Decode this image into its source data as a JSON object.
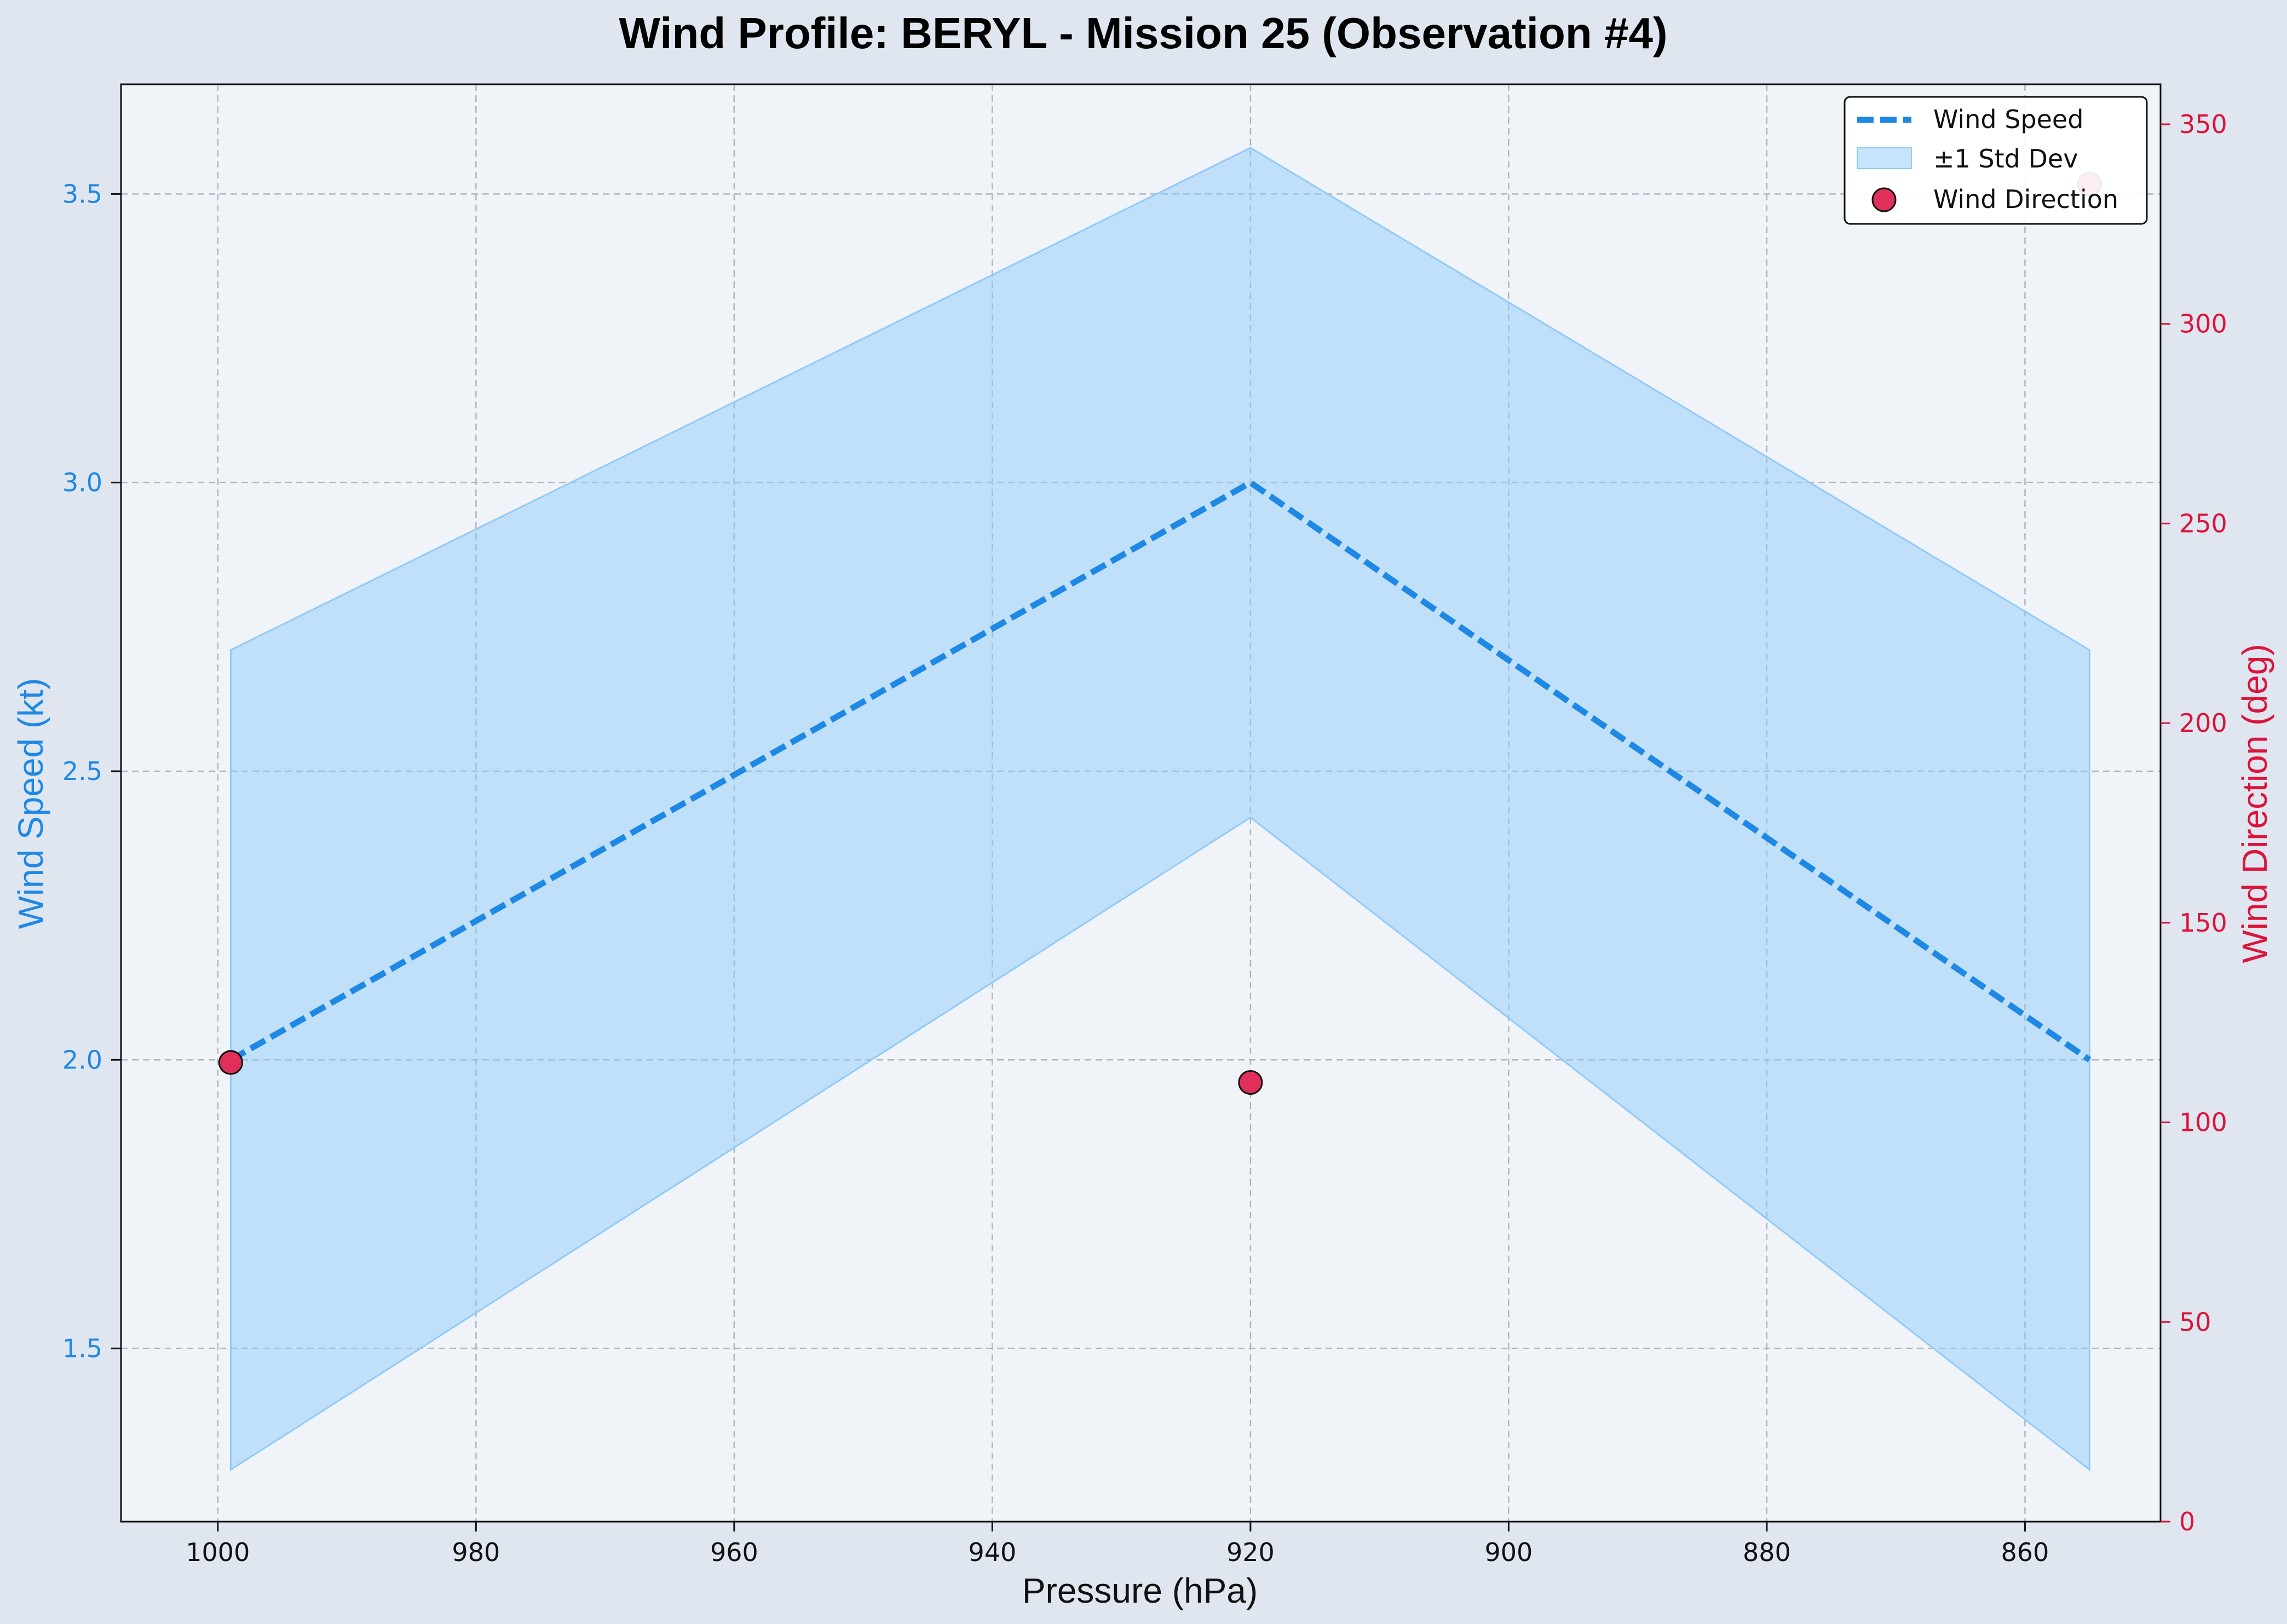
{
  "chart_data": {
    "type": "line",
    "title": "Wind Profile: BERYL - Mission 25 (Observation #4)",
    "xlabel": "Pressure (hPa)",
    "ylabel": "Wind Speed (kt)",
    "y2label": "Wind Direction (deg)",
    "x_inverted": true,
    "xlim": [
      1007.5,
      849.5
    ],
    "ylim": [
      1.2,
      3.69
    ],
    "y2lim": [
      0,
      360
    ],
    "x_ticks": [
      1000,
      980,
      960,
      940,
      920,
      900,
      880,
      860
    ],
    "y_ticks": [
      1.5,
      2.0,
      2.5,
      3.0,
      3.5
    ],
    "y2_ticks": [
      0,
      50,
      100,
      150,
      200,
      250,
      300,
      350
    ],
    "x_tick_labels": [
      "1000",
      "980",
      "960",
      "940",
      "920",
      "900",
      "880",
      "860"
    ],
    "y_tick_labels": [
      "1.5",
      "2.0",
      "2.5",
      "3.0",
      "3.5"
    ],
    "y2_tick_labels": [
      "0",
      "50",
      "100",
      "150",
      "200",
      "250",
      "300",
      "350"
    ],
    "grid": true,
    "legend_position": "top-right",
    "series": [
      {
        "name": "Wind Speed",
        "kind": "line",
        "style": "dashed",
        "color": "#1e88e5",
        "x": [
          999,
          920,
          855
        ],
        "y": [
          2.0,
          3.0,
          2.0
        ]
      },
      {
        "name": "±1 Std Dev",
        "kind": "band",
        "color": "#90caf9",
        "x": [
          999,
          920,
          855
        ],
        "lower": [
          1.29,
          2.42,
          1.29
        ],
        "upper": [
          2.71,
          3.58,
          2.71
        ]
      },
      {
        "name": "Wind Direction",
        "kind": "scatter",
        "axis": "right",
        "color": "#e0305a",
        "x": [
          999,
          920,
          855
        ],
        "y": [
          115,
          110,
          335
        ]
      }
    ]
  },
  "colors": {
    "figure_bg": "#e0e6ef",
    "plot_bg": "#f0f4f9",
    "left_axis": "#1e88e5",
    "right_axis": "#dc143c",
    "grid": "#b0b6bf",
    "text": "#111111"
  }
}
